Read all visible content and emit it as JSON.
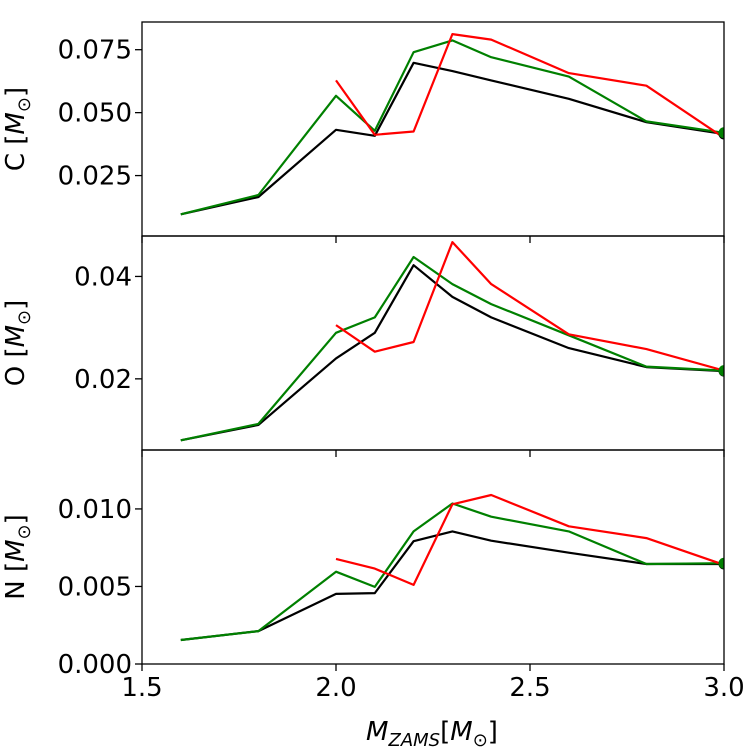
{
  "figure": {
    "xlabel": "M_ZAMS[M_⊙]",
    "xlabel_parts": {
      "main": "M",
      "sub": "ZAMS",
      "bracket_open": "[",
      "inner": "M",
      "inner_sub": "⊙",
      "bracket_close": "]"
    }
  },
  "chart_data": [
    {
      "type": "line",
      "panel": "top",
      "ylabel": "C [M_⊙]",
      "ylabel_parts": {
        "element": "C",
        "unit": "M",
        "unit_sub": "⊙"
      },
      "xlim": [
        1.5,
        3.0
      ],
      "ylim": [
        0.001,
        0.086
      ],
      "xticks": [
        1.5,
        2.0,
        2.5,
        3.0
      ],
      "xtick_labels": [
        "1.5",
        "2.0",
        "2.5",
        "3.0"
      ],
      "show_xtick_labels": false,
      "yticks": [
        0.025,
        0.05,
        0.075
      ],
      "ytick_labels": [
        "0.025",
        "0.050",
        "0.075"
      ],
      "series": [
        {
          "name": "black",
          "color": "#000000",
          "x": [
            1.6,
            1.8,
            2.0,
            2.1,
            2.2,
            2.3,
            2.4,
            2.6,
            2.8,
            3.0
          ],
          "y": [
            0.0096,
            0.0165,
            0.0432,
            0.0408,
            0.0698,
            0.0665,
            0.0628,
            0.0555,
            0.0462,
            0.0415
          ]
        },
        {
          "name": "green",
          "color": "#008000",
          "x": [
            1.6,
            1.8,
            2.0,
            2.1,
            2.2,
            2.3,
            2.4,
            2.6,
            2.8,
            3.0
          ],
          "y": [
            0.0096,
            0.0173,
            0.0567,
            0.0428,
            0.074,
            0.0787,
            0.072,
            0.0643,
            0.0465,
            0.042
          ]
        },
        {
          "name": "red",
          "color": "#ff0000",
          "x": [
            2.0,
            2.1,
            2.2,
            2.3,
            2.4,
            2.6,
            2.8,
            3.0
          ],
          "y": [
            0.0628,
            0.0412,
            0.0425,
            0.0812,
            0.079,
            0.0657,
            0.0607,
            0.04
          ]
        }
      ],
      "endpoint_markers": [
        {
          "color": "#000000",
          "x": 3.0,
          "y": 0.0415
        },
        {
          "color": "#008000",
          "x": 3.0,
          "y": 0.042
        }
      ]
    },
    {
      "type": "line",
      "panel": "middle",
      "ylabel": "O [M_⊙]",
      "ylabel_parts": {
        "element": "O",
        "unit": "M",
        "unit_sub": "⊙"
      },
      "xlim": [
        1.5,
        3.0
      ],
      "ylim": [
        0.0061,
        0.0479
      ],
      "xticks": [
        1.5,
        2.0,
        2.5,
        3.0
      ],
      "xtick_labels": [
        "1.5",
        "2.0",
        "2.5",
        "3.0"
      ],
      "show_xtick_labels": false,
      "yticks": [
        0.02,
        0.04
      ],
      "ytick_labels": [
        "0.02",
        "0.04"
      ],
      "series": [
        {
          "name": "black",
          "color": "#000000",
          "x": [
            1.6,
            1.8,
            2.0,
            2.1,
            2.2,
            2.3,
            2.4,
            2.6,
            2.8,
            3.0
          ],
          "y": [
            0.008,
            0.011,
            0.024,
            0.029,
            0.0422,
            0.036,
            0.032,
            0.026,
            0.0223,
            0.0215
          ]
        },
        {
          "name": "green",
          "color": "#008000",
          "x": [
            1.6,
            1.8,
            2.0,
            2.1,
            2.2,
            2.3,
            2.4,
            2.6,
            2.8,
            3.0
          ],
          "y": [
            0.008,
            0.0112,
            0.029,
            0.032,
            0.0438,
            0.0385,
            0.0346,
            0.0285,
            0.0224,
            0.0216
          ]
        },
        {
          "name": "red",
          "color": "#ff0000",
          "x": [
            2.0,
            2.1,
            2.2,
            2.3,
            2.4,
            2.6,
            2.8,
            3.0
          ],
          "y": [
            0.0305,
            0.0253,
            0.0272,
            0.0467,
            0.0385,
            0.0287,
            0.0258,
            0.0216
          ]
        }
      ],
      "endpoint_markers": [
        {
          "color": "#000000",
          "x": 3.0,
          "y": 0.0215
        },
        {
          "color": "#008000",
          "x": 3.0,
          "y": 0.0216
        }
      ]
    },
    {
      "type": "line",
      "panel": "bottom",
      "ylabel": "N [M_⊙]",
      "ylabel_parts": {
        "element": "N",
        "unit": "M",
        "unit_sub": "⊙"
      },
      "xlim": [
        1.5,
        3.0
      ],
      "ylim": [
        0.0,
        0.0138
      ],
      "xticks": [
        1.5,
        2.0,
        2.5,
        3.0
      ],
      "xtick_labels": [
        "1.5",
        "2.0",
        "2.5",
        "3.0"
      ],
      "show_xtick_labels": true,
      "yticks": [
        0.0,
        0.005,
        0.01
      ],
      "ytick_labels": [
        "0.000",
        "0.005",
        "0.010"
      ],
      "series": [
        {
          "name": "black",
          "color": "#000000",
          "x": [
            1.6,
            1.8,
            2.0,
            2.1,
            2.2,
            2.3,
            2.4,
            2.6,
            2.8,
            3.0
          ],
          "y": [
            0.00155,
            0.00212,
            0.00452,
            0.00457,
            0.00792,
            0.00855,
            0.00795,
            0.00718,
            0.00645,
            0.00645
          ]
        },
        {
          "name": "green",
          "color": "#008000",
          "x": [
            1.6,
            1.8,
            2.0,
            2.1,
            2.2,
            2.3,
            2.4,
            2.6,
            2.8,
            3.0
          ],
          "y": [
            0.00155,
            0.00212,
            0.00595,
            0.00497,
            0.00855,
            0.01035,
            0.0095,
            0.00855,
            0.00645,
            0.0065
          ]
        },
        {
          "name": "red",
          "color": "#ff0000",
          "x": [
            2.0,
            2.1,
            2.2,
            2.3,
            2.4,
            2.6,
            2.8,
            3.0
          ],
          "y": [
            0.00678,
            0.00615,
            0.0051,
            0.0103,
            0.0109,
            0.00888,
            0.00812,
            0.0064
          ]
        }
      ],
      "endpoint_markers": [
        {
          "color": "#000000",
          "x": 3.0,
          "y": 0.00645
        },
        {
          "color": "#008000",
          "x": 3.0,
          "y": 0.0065
        }
      ]
    }
  ]
}
